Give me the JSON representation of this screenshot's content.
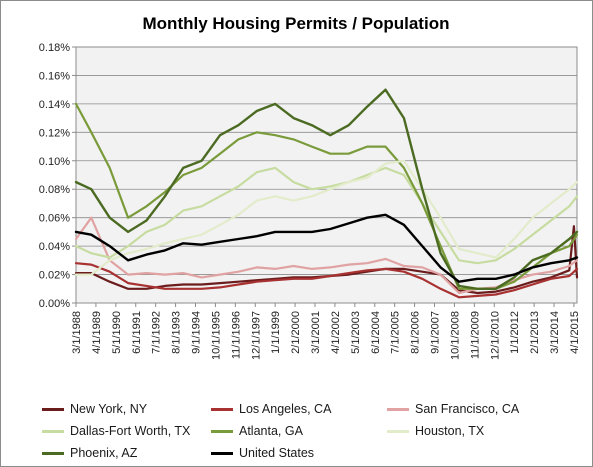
{
  "chart_data": {
    "type": "line",
    "title": "Monthly Housing Permits / Population",
    "xlabel": "",
    "ylabel": "",
    "ylim": [
      0,
      0.18
    ],
    "yticks": [
      "0.00%",
      "0.02%",
      "0.04%",
      "0.06%",
      "0.08%",
      "0.10%",
      "0.12%",
      "0.14%",
      "0.16%",
      "0.18%"
    ],
    "x_start": "3/1/1988",
    "x_end": "6/1/2015",
    "xticks": [
      "3/1/1988",
      "4/1/1989",
      "5/1/1990",
      "6/1/1991",
      "7/1/1992",
      "8/1/1993",
      "9/1/1994",
      "10/1/1995",
      "11/1/1996",
      "12/1/1997",
      "1/1/1999",
      "2/1/2000",
      "3/1/2001",
      "4/1/2002",
      "5/1/2003",
      "6/1/2004",
      "7/1/2005",
      "8/1/2006",
      "9/1/2007",
      "10/1/2008",
      "11/1/2009",
      "12/1/2010",
      "1/1/2012",
      "2/1/2013",
      "3/1/2014",
      "4/1/2015"
    ],
    "grid": true,
    "legend_position": "bottom",
    "series": [
      {
        "name": "New York, NY",
        "color": "#6b1d1d",
        "width": 2.2,
        "points": [
          [
            "3/1/1988",
            0.021
          ],
          [
            "1/1/1989",
            0.021
          ],
          [
            "1/1/1990",
            0.015
          ],
          [
            "1/1/1991",
            0.01
          ],
          [
            "1/1/1992",
            0.01
          ],
          [
            "1/1/1993",
            0.012
          ],
          [
            "1/1/1994",
            0.013
          ],
          [
            "1/1/1995",
            0.013
          ],
          [
            "1/1/1996",
            0.014
          ],
          [
            "1/1/1997",
            0.015
          ],
          [
            "1/1/1998",
            0.016
          ],
          [
            "1/1/1999",
            0.017
          ],
          [
            "1/1/2000",
            0.018
          ],
          [
            "1/1/2001",
            0.018
          ],
          [
            "1/1/2002",
            0.019
          ],
          [
            "1/1/2003",
            0.02
          ],
          [
            "1/1/2004",
            0.022
          ],
          [
            "1/1/2005",
            0.024
          ],
          [
            "1/1/2006",
            0.024
          ],
          [
            "1/1/2007",
            0.022
          ],
          [
            "1/1/2008",
            0.02
          ],
          [
            "1/1/2009",
            0.009
          ],
          [
            "1/1/2010",
            0.007
          ],
          [
            "1/1/2011",
            0.008
          ],
          [
            "1/1/2012",
            0.011
          ],
          [
            "1/1/2013",
            0.015
          ],
          [
            "1/1/2014",
            0.018
          ],
          [
            "1/1/2015",
            0.023
          ],
          [
            "4/1/2015",
            0.054
          ],
          [
            "6/1/2015",
            0.018
          ]
        ]
      },
      {
        "name": "Los Angeles, CA",
        "color": "#a83232",
        "width": 2.2,
        "points": [
          [
            "3/1/1988",
            0.028
          ],
          [
            "1/1/1989",
            0.027
          ],
          [
            "1/1/1990",
            0.022
          ],
          [
            "1/1/1991",
            0.014
          ],
          [
            "1/1/1992",
            0.012
          ],
          [
            "1/1/1993",
            0.01
          ],
          [
            "1/1/1994",
            0.01
          ],
          [
            "1/1/1995",
            0.01
          ],
          [
            "1/1/1996",
            0.011
          ],
          [
            "1/1/1997",
            0.013
          ],
          [
            "1/1/1998",
            0.015
          ],
          [
            "1/1/1999",
            0.016
          ],
          [
            "1/1/2000",
            0.017
          ],
          [
            "1/1/2001",
            0.017
          ],
          [
            "1/1/2002",
            0.019
          ],
          [
            "1/1/2003",
            0.021
          ],
          [
            "1/1/2004",
            0.023
          ],
          [
            "1/1/2005",
            0.024
          ],
          [
            "1/1/2006",
            0.022
          ],
          [
            "1/1/2007",
            0.017
          ],
          [
            "1/1/2008",
            0.01
          ],
          [
            "1/1/2009",
            0.004
          ],
          [
            "1/1/2010",
            0.005
          ],
          [
            "1/1/2011",
            0.006
          ],
          [
            "1/1/2012",
            0.009
          ],
          [
            "1/1/2013",
            0.013
          ],
          [
            "1/1/2014",
            0.017
          ],
          [
            "1/1/2015",
            0.019
          ],
          [
            "6/1/2015",
            0.024
          ]
        ]
      },
      {
        "name": "San Francisco, CA",
        "color": "#e0a2a2",
        "width": 2.2,
        "points": [
          [
            "3/1/1988",
            0.045
          ],
          [
            "1/1/1989",
            0.06
          ],
          [
            "1/1/1990",
            0.03
          ],
          [
            "1/1/1991",
            0.02
          ],
          [
            "1/1/1992",
            0.021
          ],
          [
            "1/1/1993",
            0.02
          ],
          [
            "1/1/1994",
            0.021
          ],
          [
            "1/1/1995",
            0.018
          ],
          [
            "1/1/1996",
            0.02
          ],
          [
            "1/1/1997",
            0.022
          ],
          [
            "1/1/1998",
            0.025
          ],
          [
            "1/1/1999",
            0.024
          ],
          [
            "1/1/2000",
            0.026
          ],
          [
            "1/1/2001",
            0.024
          ],
          [
            "1/1/2002",
            0.025
          ],
          [
            "1/1/2003",
            0.027
          ],
          [
            "1/1/2004",
            0.028
          ],
          [
            "1/1/2005",
            0.031
          ],
          [
            "1/1/2006",
            0.026
          ],
          [
            "1/1/2007",
            0.025
          ],
          [
            "1/1/2008",
            0.02
          ],
          [
            "1/1/2009",
            0.007
          ],
          [
            "1/1/2010",
            0.01
          ],
          [
            "1/1/2011",
            0.011
          ],
          [
            "1/1/2012",
            0.016
          ],
          [
            "1/1/2013",
            0.02
          ],
          [
            "1/1/2014",
            0.022
          ],
          [
            "1/1/2015",
            0.026
          ],
          [
            "6/1/2015",
            0.03
          ]
        ]
      },
      {
        "name": "Dallas-Fort Worth, TX",
        "color": "#c7dca0",
        "width": 2.2,
        "points": [
          [
            "3/1/1988",
            0.04
          ],
          [
            "1/1/1989",
            0.035
          ],
          [
            "1/1/1990",
            0.032
          ],
          [
            "1/1/1991",
            0.04
          ],
          [
            "1/1/1992",
            0.05
          ],
          [
            "1/1/1993",
            0.055
          ],
          [
            "1/1/1994",
            0.065
          ],
          [
            "1/1/1995",
            0.068
          ],
          [
            "1/1/1996",
            0.075
          ],
          [
            "1/1/1997",
            0.082
          ],
          [
            "1/1/1998",
            0.092
          ],
          [
            "1/1/1999",
            0.095
          ],
          [
            "1/1/2000",
            0.085
          ],
          [
            "1/1/2001",
            0.08
          ],
          [
            "1/1/2002",
            0.082
          ],
          [
            "1/1/2003",
            0.085
          ],
          [
            "1/1/2004",
            0.09
          ],
          [
            "1/1/2005",
            0.095
          ],
          [
            "1/1/2006",
            0.09
          ],
          [
            "1/1/2007",
            0.07
          ],
          [
            "1/1/2008",
            0.05
          ],
          [
            "1/1/2009",
            0.03
          ],
          [
            "1/1/2010",
            0.028
          ],
          [
            "1/1/2011",
            0.03
          ],
          [
            "1/1/2012",
            0.038
          ],
          [
            "1/1/2013",
            0.048
          ],
          [
            "1/1/2014",
            0.058
          ],
          [
            "1/1/2015",
            0.068
          ],
          [
            "6/1/2015",
            0.075
          ]
        ]
      },
      {
        "name": "Atlanta, GA",
        "color": "#7a9b3a",
        "width": 2.2,
        "points": [
          [
            "3/1/1988",
            0.14
          ],
          [
            "1/1/1989",
            0.12
          ],
          [
            "1/1/1990",
            0.095
          ],
          [
            "1/1/1991",
            0.06
          ],
          [
            "1/1/1992",
            0.068
          ],
          [
            "1/1/1993",
            0.078
          ],
          [
            "1/1/1994",
            0.09
          ],
          [
            "1/1/1995",
            0.095
          ],
          [
            "1/1/1996",
            0.105
          ],
          [
            "1/1/1997",
            0.115
          ],
          [
            "1/1/1998",
            0.12
          ],
          [
            "1/1/1999",
            0.118
          ],
          [
            "1/1/2000",
            0.115
          ],
          [
            "1/1/2001",
            0.11
          ],
          [
            "1/1/2002",
            0.105
          ],
          [
            "1/1/2003",
            0.105
          ],
          [
            "1/1/2004",
            0.11
          ],
          [
            "1/1/2005",
            0.11
          ],
          [
            "1/1/2006",
            0.095
          ],
          [
            "1/1/2007",
            0.07
          ],
          [
            "1/1/2008",
            0.04
          ],
          [
            "1/1/2009",
            0.01
          ],
          [
            "1/1/2010",
            0.01
          ],
          [
            "1/1/2011",
            0.01
          ],
          [
            "1/1/2012",
            0.015
          ],
          [
            "1/1/2013",
            0.025
          ],
          [
            "1/1/2014",
            0.035
          ],
          [
            "1/1/2015",
            0.04
          ],
          [
            "6/1/2015",
            0.048
          ]
        ]
      },
      {
        "name": "Houston, TX",
        "color": "#e2eccb",
        "width": 2.2,
        "points": [
          [
            "3/1/1988",
            0.02
          ],
          [
            "1/1/1989",
            0.02
          ],
          [
            "1/1/1990",
            0.03
          ],
          [
            "1/1/1991",
            0.035
          ],
          [
            "1/1/1992",
            0.038
          ],
          [
            "1/1/1993",
            0.042
          ],
          [
            "1/1/1994",
            0.045
          ],
          [
            "1/1/1995",
            0.048
          ],
          [
            "1/1/1996",
            0.055
          ],
          [
            "1/1/1997",
            0.062
          ],
          [
            "1/1/1998",
            0.072
          ],
          [
            "1/1/1999",
            0.075
          ],
          [
            "1/1/2000",
            0.072
          ],
          [
            "1/1/2001",
            0.075
          ],
          [
            "1/1/2002",
            0.08
          ],
          [
            "1/1/2003",
            0.085
          ],
          [
            "1/1/2004",
            0.088
          ],
          [
            "1/1/2005",
            0.098
          ],
          [
            "1/1/2006",
            0.1
          ],
          [
            "1/1/2007",
            0.08
          ],
          [
            "1/1/2008",
            0.06
          ],
          [
            "1/1/2009",
            0.038
          ],
          [
            "1/1/2010",
            0.035
          ],
          [
            "1/1/2011",
            0.032
          ],
          [
            "1/1/2012",
            0.045
          ],
          [
            "1/1/2013",
            0.06
          ],
          [
            "1/1/2014",
            0.07
          ],
          [
            "1/1/2015",
            0.08
          ],
          [
            "6/1/2015",
            0.085
          ]
        ]
      },
      {
        "name": "Phoenix, AZ",
        "color": "#4c6b22",
        "width": 2.4,
        "points": [
          [
            "3/1/1988",
            0.085
          ],
          [
            "1/1/1989",
            0.08
          ],
          [
            "1/1/1990",
            0.06
          ],
          [
            "1/1/1991",
            0.05
          ],
          [
            "1/1/1992",
            0.058
          ],
          [
            "1/1/1993",
            0.075
          ],
          [
            "1/1/1994",
            0.095
          ],
          [
            "1/1/1995",
            0.1
          ],
          [
            "1/1/1996",
            0.118
          ],
          [
            "1/1/1997",
            0.125
          ],
          [
            "1/1/1998",
            0.135
          ],
          [
            "1/1/1999",
            0.14
          ],
          [
            "1/1/2000",
            0.13
          ],
          [
            "1/1/2001",
            0.125
          ],
          [
            "1/1/2002",
            0.118
          ],
          [
            "1/1/2003",
            0.125
          ],
          [
            "1/1/2004",
            0.138
          ],
          [
            "1/1/2005",
            0.15
          ],
          [
            "1/1/2006",
            0.13
          ],
          [
            "1/1/2007",
            0.08
          ],
          [
            "1/1/2008",
            0.035
          ],
          [
            "1/1/2009",
            0.012
          ],
          [
            "1/1/2010",
            0.01
          ],
          [
            "1/1/2011",
            0.01
          ],
          [
            "1/1/2012",
            0.018
          ],
          [
            "1/1/2013",
            0.03
          ],
          [
            "1/1/2014",
            0.035
          ],
          [
            "1/1/2015",
            0.045
          ],
          [
            "6/1/2015",
            0.05
          ]
        ]
      },
      {
        "name": "United States",
        "color": "#000000",
        "width": 2.4,
        "points": [
          [
            "3/1/1988",
            0.05
          ],
          [
            "1/1/1989",
            0.048
          ],
          [
            "1/1/1990",
            0.04
          ],
          [
            "1/1/1991",
            0.03
          ],
          [
            "1/1/1992",
            0.034
          ],
          [
            "1/1/1993",
            0.037
          ],
          [
            "1/1/1994",
            0.042
          ],
          [
            "1/1/1995",
            0.041
          ],
          [
            "1/1/1996",
            0.043
          ],
          [
            "1/1/1997",
            0.045
          ],
          [
            "1/1/1998",
            0.047
          ],
          [
            "1/1/1999",
            0.05
          ],
          [
            "1/1/2000",
            0.05
          ],
          [
            "1/1/2001",
            0.05
          ],
          [
            "1/1/2002",
            0.052
          ],
          [
            "1/1/2003",
            0.056
          ],
          [
            "1/1/2004",
            0.06
          ],
          [
            "1/1/2005",
            0.062
          ],
          [
            "1/1/2006",
            0.055
          ],
          [
            "1/1/2007",
            0.04
          ],
          [
            "1/1/2008",
            0.025
          ],
          [
            "1/1/2009",
            0.015
          ],
          [
            "1/1/2010",
            0.017
          ],
          [
            "1/1/2011",
            0.017
          ],
          [
            "1/1/2012",
            0.02
          ],
          [
            "1/1/2013",
            0.025
          ],
          [
            "1/1/2014",
            0.028
          ],
          [
            "1/1/2015",
            0.03
          ],
          [
            "6/1/2015",
            0.032
          ]
        ]
      }
    ]
  }
}
